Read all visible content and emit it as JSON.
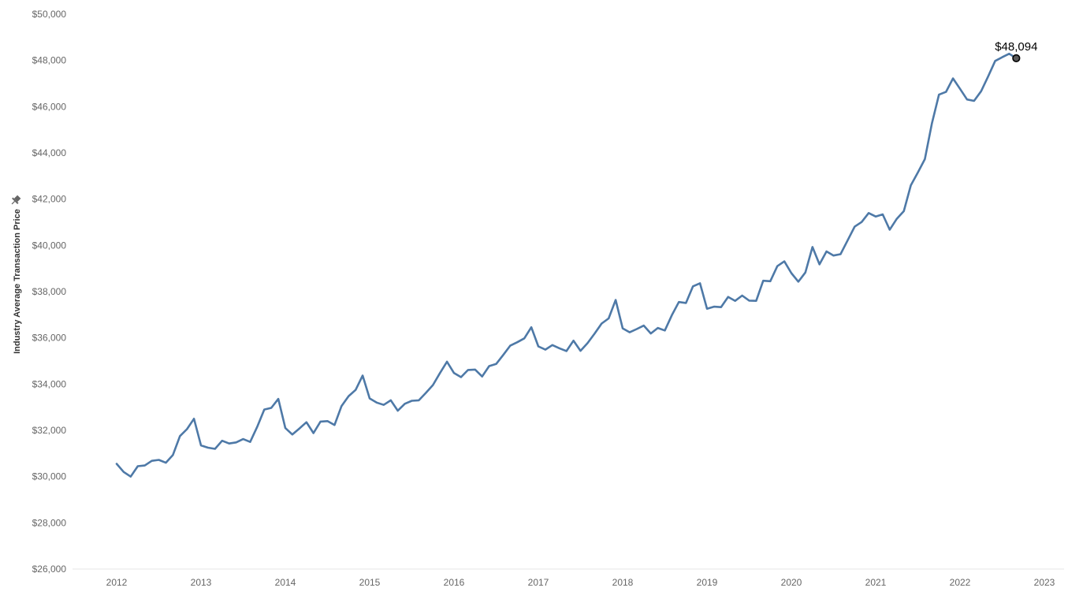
{
  "chart_data": {
    "type": "line",
    "title": "",
    "xlabel": "",
    "ylabel": "Industry Average Transaction Price",
    "ylim": [
      26000,
      50000
    ],
    "xlim": [
      "2011-06-01",
      "2023-01-01"
    ],
    "y_ticks": [
      26000,
      28000,
      30000,
      32000,
      34000,
      36000,
      38000,
      40000,
      42000,
      44000,
      46000,
      48000,
      50000
    ],
    "y_tick_labels": [
      "$26,000",
      "$28,000",
      "$30,000",
      "$32,000",
      "$34,000",
      "$36,000",
      "$38,000",
      "$40,000",
      "$42,000",
      "$44,000",
      "$46,000",
      "$48,000",
      "$50,000"
    ],
    "x_ticks": [
      "2012-01-01",
      "2013-01-01",
      "2014-01-01",
      "2015-01-01",
      "2016-01-01",
      "2017-01-01",
      "2018-01-01",
      "2019-01-01",
      "2020-01-01",
      "2021-01-01",
      "2022-01-01",
      "2023-01-01"
    ],
    "x_tick_labels": [
      "2012",
      "2013",
      "2014",
      "2015",
      "2016",
      "2017",
      "2018",
      "2019",
      "2020",
      "2021",
      "2022",
      "2023"
    ],
    "grid": false,
    "legend": "none",
    "series": [
      {
        "color": "#4e79a7",
        "x": [
          "2012-01",
          "2012-02",
          "2012-03",
          "2012-04",
          "2012-05",
          "2012-06",
          "2012-07",
          "2012-08",
          "2012-09",
          "2012-10",
          "2012-11",
          "2012-12",
          "2013-01",
          "2013-02",
          "2013-03",
          "2013-04",
          "2013-05",
          "2013-06",
          "2013-07",
          "2013-08",
          "2013-09",
          "2013-10",
          "2013-11",
          "2013-12",
          "2014-01",
          "2014-02",
          "2014-03",
          "2014-04",
          "2014-05",
          "2014-06",
          "2014-07",
          "2014-08",
          "2014-09",
          "2014-10",
          "2014-11",
          "2014-12",
          "2015-01",
          "2015-02",
          "2015-03",
          "2015-04",
          "2015-05",
          "2015-06",
          "2015-07",
          "2015-08",
          "2015-09",
          "2015-10",
          "2015-11",
          "2015-12",
          "2016-01",
          "2016-02",
          "2016-03",
          "2016-04",
          "2016-05",
          "2016-06",
          "2016-07",
          "2016-08",
          "2016-09",
          "2016-10",
          "2016-11",
          "2016-12",
          "2017-01",
          "2017-02",
          "2017-03",
          "2017-04",
          "2017-05",
          "2017-06",
          "2017-07",
          "2017-08",
          "2017-09",
          "2017-10",
          "2017-11",
          "2017-12",
          "2018-01",
          "2018-02",
          "2018-03",
          "2018-04",
          "2018-05",
          "2018-06",
          "2018-07",
          "2018-08",
          "2018-09",
          "2018-10",
          "2018-11",
          "2018-12",
          "2019-01",
          "2019-02",
          "2019-03",
          "2019-04",
          "2019-05",
          "2019-06",
          "2019-07",
          "2019-08",
          "2019-09",
          "2019-10",
          "2019-11",
          "2019-12",
          "2020-01",
          "2020-02",
          "2020-03",
          "2020-04",
          "2020-05",
          "2020-06",
          "2020-07",
          "2020-08",
          "2020-09",
          "2020-10",
          "2020-11",
          "2020-12",
          "2021-01",
          "2021-02",
          "2021-03",
          "2021-04",
          "2021-05",
          "2021-06",
          "2021-07",
          "2021-08",
          "2021-09",
          "2021-10",
          "2021-11",
          "2021-12",
          "2022-01",
          "2022-02",
          "2022-03",
          "2022-04",
          "2022-05",
          "2022-06",
          "2022-07",
          "2022-08",
          "2022-09"
        ],
        "y": [
          30550,
          30200,
          30000,
          30450,
          30480,
          30680,
          30720,
          30600,
          30930,
          31750,
          32050,
          32500,
          31350,
          31250,
          31200,
          31550,
          31430,
          31480,
          31620,
          31500,
          32150,
          32900,
          32970,
          33360,
          32100,
          31820,
          32080,
          32350,
          31880,
          32380,
          32400,
          32230,
          33050,
          33480,
          33750,
          34370,
          33380,
          33200,
          33100,
          33300,
          32850,
          33150,
          33280,
          33300,
          33620,
          33960,
          34480,
          34970,
          34480,
          34300,
          34610,
          34630,
          34330,
          34780,
          34870,
          35260,
          35660,
          35810,
          35980,
          36460,
          35630,
          35490,
          35690,
          35550,
          35430,
          35880,
          35440,
          35770,
          36180,
          36620,
          36840,
          37640,
          36410,
          36240,
          36380,
          36530,
          36190,
          36430,
          36320,
          36980,
          37550,
          37510,
          38230,
          38360,
          37260,
          37350,
          37330,
          37770,
          37600,
          37830,
          37610,
          37600,
          38470,
          38450,
          39100,
          39310,
          38800,
          38430,
          38830,
          39930,
          39180,
          39740,
          39560,
          39620,
          40210,
          40810,
          41010,
          41400,
          41250,
          41340,
          40680,
          41150,
          41480,
          42600,
          43150,
          43730,
          45270,
          46520,
          46640,
          47220,
          46770,
          46310,
          46250,
          46670,
          47310,
          47980,
          48140,
          48290,
          48094
        ]
      }
    ],
    "annotations": [
      {
        "label": "$48,094",
        "x": "2022-09",
        "y": 48094
      }
    ]
  }
}
